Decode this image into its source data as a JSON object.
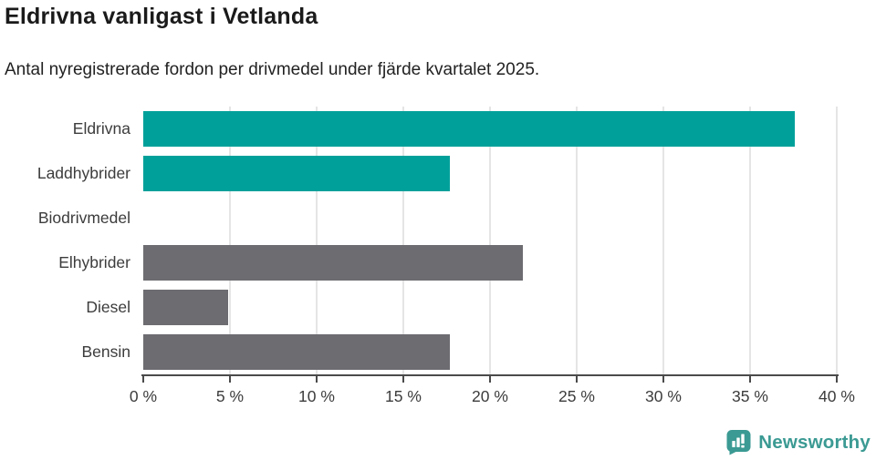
{
  "title": "Eldrivna vanligast i Vetlanda",
  "subtitle": "Antal nyregistrerade fordon per drivmedel under fjärde kvartalet 2025.",
  "chart_data": {
    "type": "bar",
    "orientation": "horizontal",
    "title": "Eldrivna vanligast i Vetlanda",
    "subtitle": "Antal nyregistrerade fordon per drivmedel under fjärde kvartalet 2025.",
    "categories": [
      "Eldrivna",
      "Laddhybrider",
      "Biodrivmedel",
      "Elhybrider",
      "Diesel",
      "Bensin"
    ],
    "values": [
      37.6,
      17.7,
      0,
      21.9,
      4.9,
      17.7
    ],
    "bar_colors": [
      "#00A09A",
      "#00A09A",
      "#00A09A",
      "#6C6C71",
      "#6C6C71",
      "#6C6C71"
    ],
    "xlim": [
      0,
      40
    ],
    "x_ticks": [
      0,
      5,
      10,
      15,
      20,
      25,
      30,
      35,
      40
    ],
    "x_tick_labels": [
      "0 %",
      "5 %",
      "10 %",
      "15 %",
      "20 %",
      "25 %",
      "30 %",
      "35 %",
      "40 %"
    ],
    "xlabel": "",
    "ylabel": "",
    "grid": "vertical",
    "legend": "none"
  },
  "colors": {
    "accent_teal": "#00A09A",
    "neutral_gray": "#6C6C71",
    "axis": "#4a4a4a",
    "gridline": "#e5e5e5",
    "brand_teal": "#3B9A93"
  },
  "footer": {
    "brand": "Newsworthy"
  }
}
